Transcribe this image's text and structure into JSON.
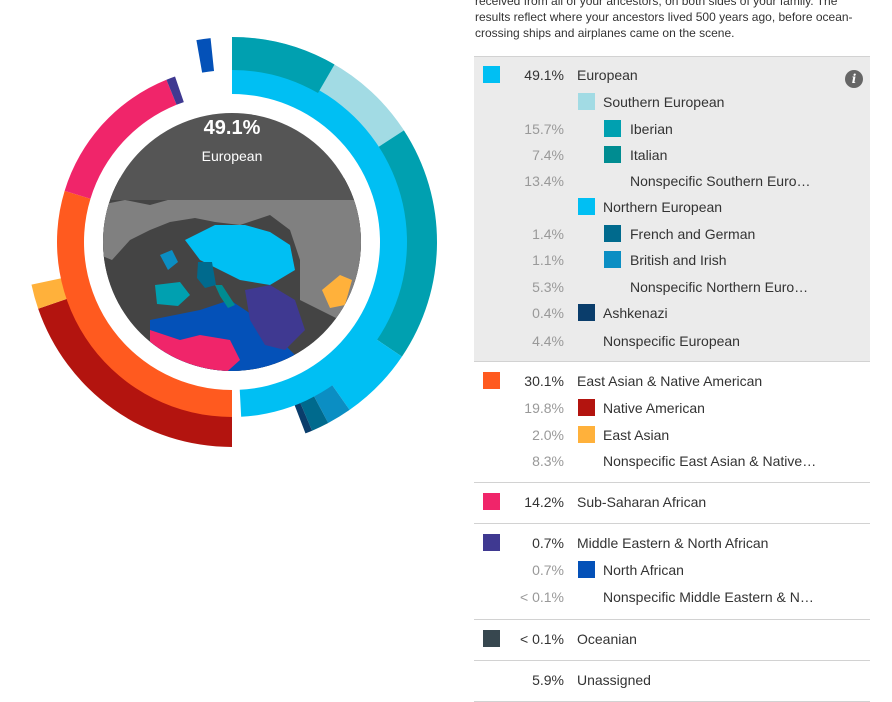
{
  "intro": {
    "lines": [
      "received from all of your ancestors, on both sides of your family. The",
      "results reflect where your ancestors lived 500 years ago, before ocean-",
      "crossing ships and airplanes came on the scene."
    ]
  },
  "center": {
    "percent": "49.1%",
    "label": "European"
  },
  "groups": [
    {
      "rows": [
        {
          "level": 0,
          "percent": "49.1%",
          "name": "European",
          "color": "#00BFF3",
          "info": "i"
        },
        {
          "level": 1,
          "percent": "",
          "name": "Southern European",
          "color": "#A2DBE4"
        },
        {
          "level": 2,
          "percent": "15.7%",
          "name": "Iberian",
          "color": "#00A0B0"
        },
        {
          "level": 2,
          "percent": "7.4%",
          "name": "Italian",
          "color": "#008C91"
        },
        {
          "level": 2,
          "percent": "13.4%",
          "name": "Nonspecific Southern Euro…",
          "color": ""
        },
        {
          "level": 1,
          "percent": "",
          "name": "Northern European",
          "color": "#00BFF3"
        },
        {
          "level": 2,
          "percent": "1.4%",
          "name": "French and German",
          "color": "#006A8D"
        },
        {
          "level": 2,
          "percent": "1.1%",
          "name": "British and Irish",
          "color": "#0B8EC3"
        },
        {
          "level": 2,
          "percent": "5.3%",
          "name": "Nonspecific Northern Euro…",
          "color": ""
        },
        {
          "level": 1,
          "percent": "0.4%",
          "name": "Ashkenazi",
          "color": "#0A3D6B"
        },
        {
          "level": 1,
          "percent": "4.4%",
          "name": "Nonspecific European",
          "color": ""
        }
      ]
    },
    {
      "rows": [
        {
          "level": 0,
          "percent": "30.1%",
          "name": "East Asian & Native American",
          "color": "#FF5A1F"
        },
        {
          "level": 1,
          "percent": "19.8%",
          "name": "Native American",
          "color": "#B3140F"
        },
        {
          "level": 1,
          "percent": "2.0%",
          "name": "East Asian",
          "color": "#FFB13B"
        },
        {
          "level": 1,
          "percent": "8.3%",
          "name": "Nonspecific East Asian & Native…",
          "color": ""
        }
      ]
    },
    {
      "rows": [
        {
          "level": 0,
          "percent": "14.2%",
          "name": "Sub-Saharan African",
          "color": "#F0256A"
        }
      ]
    },
    {
      "rows": [
        {
          "level": 0,
          "percent": "0.7%",
          "name": "Middle Eastern & North African",
          "color": "#3F3991"
        },
        {
          "level": 1,
          "percent": "0.7%",
          "name": "North African",
          "color": "#0451B8"
        },
        {
          "level": 1,
          "percent": "< 0.1%",
          "name": "Nonspecific Middle Eastern & N…",
          "color": ""
        }
      ]
    },
    {
      "rows": [
        {
          "level": 0,
          "percent": "< 0.1%",
          "name": "Oceanian",
          "color": "#37474F"
        }
      ]
    },
    {
      "rows": [
        {
          "level": 0,
          "percent": "5.9%",
          "name": "Unassigned",
          "color": ""
        }
      ]
    }
  ],
  "colors": {
    "center_disc": "#555555",
    "map_land": "#808080",
    "map_sea": "#444444",
    "europe": "#00BFF3",
    "southern_european": "#A2DBE4",
    "iberian": "#00A0B0",
    "italian": "#008C91",
    "east_asian_native_american": "#FF5A1F",
    "native_american": "#B3140F",
    "east_asian": "#FFB13B",
    "sub_saharan_african": "#F0256A",
    "middle_eastern": "#3F3991",
    "north_african": "#0451B8",
    "northern_european": "#00BFF3",
    "french_german": "#006A8D",
    "british_irish": "#0B8EC3",
    "ashkenazi": "#0A3D6B"
  }
}
